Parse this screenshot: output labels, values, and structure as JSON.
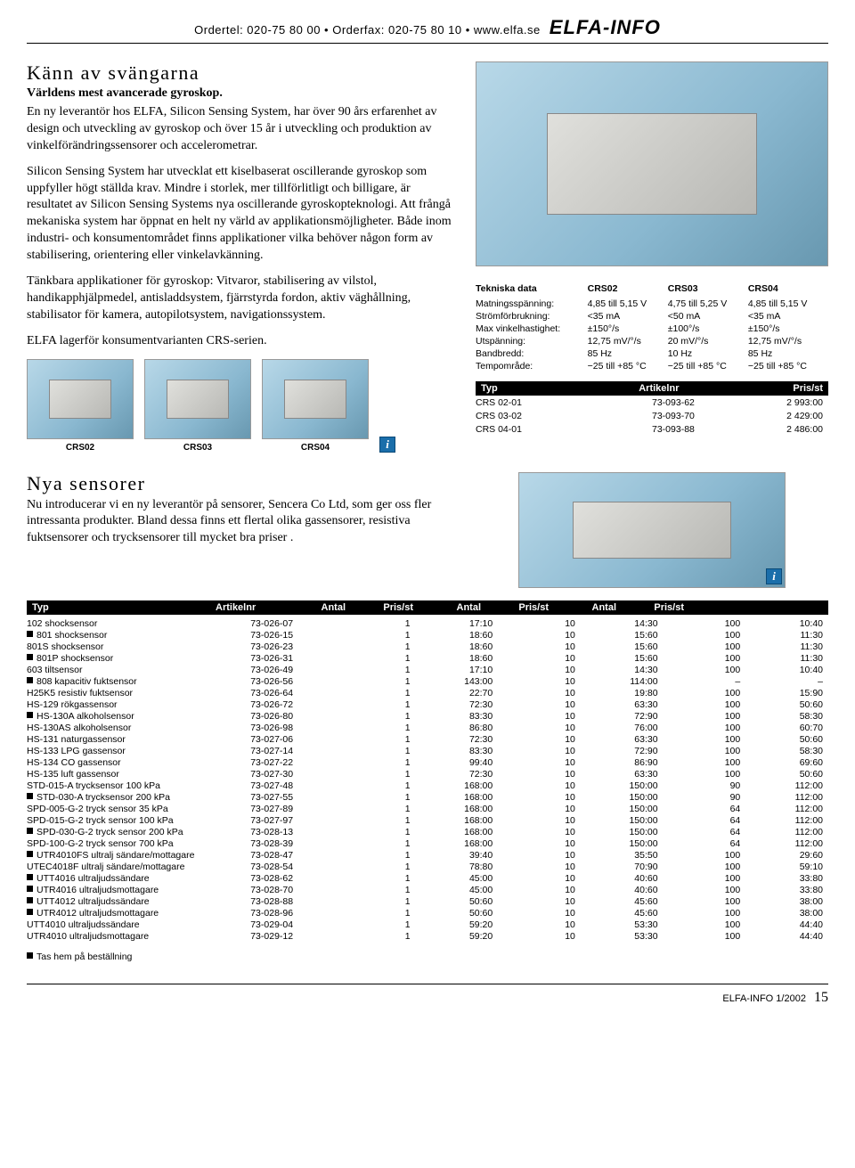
{
  "header": {
    "contact": "Ordertel: 020-75 80 00 • Orderfax: 020-75 80 10 • www.elfa.se",
    "brand": "ELFA-INFO"
  },
  "article1": {
    "title": "Känn av svängarna",
    "subhead": "Världens mest avancerade gyroskop.",
    "p1": "En ny leverantör hos ELFA, Silicon Sensing System, har över 90 års erfarenhet av design och utveckling av gyroskop och över 15 år i utveckling och produktion av vinkelförändringssensorer och accelerometrar.",
    "p2": "Silicon Sensing System har utvecklat ett kiselbaserat oscillerande gyroskop som uppfyller högt ställda krav. Mindre i storlek, mer tillförlitligt och billigare, är resultatet av Silicon Sensing Systems nya oscillerande gyroskopteknologi. Att frångå mekaniska system har öppnat en helt ny värld av applikationsmöjligheter. Både inom industri- och konsumentområdet finns applikationer vilka behöver någon form av stabilisering, orientering eller vinkelavkänning.",
    "p3": "Tänkbara applikationer för gyroskop: Vitvaror, stabilisering av vilstol, handikapphjälpmedel, antisladdsystem, fjärrstyrda fordon, aktiv väghållning, stabilisator för kamera, autopilotsystem, navigationssystem.",
    "p4": "ELFA lagerför konsumentvarianten CRS-serien.",
    "products": [
      {
        "label": "CRS02"
      },
      {
        "label": "CRS03"
      },
      {
        "label": "CRS04"
      }
    ],
    "spec": {
      "head": [
        "Tekniska data",
        "CRS02",
        "CRS03",
        "CRS04"
      ],
      "rows": [
        [
          "Matningsspänning:",
          "4,85 till 5,15 V",
          "4,75 till 5,25 V",
          "4,85 till 5,15 V"
        ],
        [
          "Strömförbrukning:",
          "<35 mA",
          "<50 mA",
          "<35 mA"
        ],
        [
          "Max vinkelhastighet:",
          "±150°/s",
          "±100°/s",
          "±150°/s"
        ],
        [
          "Utspänning:",
          "12,75 mV/°/s",
          "20 mV/°/s",
          "12,75 mV/°/s"
        ],
        [
          "Bandbredd:",
          "85 Hz",
          "10 Hz",
          "85 Hz"
        ],
        [
          "Tempområde:",
          "−25 till +85 °C",
          "−25 till +85 °C",
          "−25 till +85 °C"
        ]
      ]
    },
    "pricing_head": {
      "typ": "Typ",
      "art": "Artikelnr",
      "pris": "Pris/st"
    },
    "pricing_rows": [
      [
        "CRS 02-01",
        "73-093-62",
        "2 993:00"
      ],
      [
        "CRS 03-02",
        "73-093-70",
        "2 429:00"
      ],
      [
        "CRS 04-01",
        "73-093-88",
        "2 486:00"
      ]
    ]
  },
  "article2": {
    "title": "Nya sensorer",
    "p1": "Nu introducerar vi en ny leverantör på sensorer, Sencera Co Ltd, som ger oss fler intressanta produkter. Bland dessa finns ett flertal olika gassensorer, resistiva fuktsensorer och trycksensorer till mycket bra priser .",
    "head": [
      "Typ",
      "Artikelnr",
      "Antal",
      "Pris/st",
      "Antal",
      "Pris/st",
      "Antal",
      "Pris/st"
    ],
    "rows": [
      {
        "sq": false,
        "c": [
          "102 shocksensor",
          "73-026-07",
          "1",
          "17:10",
          "10",
          "14:30",
          "100",
          "10:40"
        ]
      },
      {
        "sq": true,
        "c": [
          "801 shocksensor",
          "73-026-15",
          "1",
          "18:60",
          "10",
          "15:60",
          "100",
          "11:30"
        ]
      },
      {
        "sq": false,
        "c": [
          "801S shocksensor",
          "73-026-23",
          "1",
          "18:60",
          "10",
          "15:60",
          "100",
          "11:30"
        ]
      },
      {
        "sq": true,
        "c": [
          "801P shocksensor",
          "73-026-31",
          "1",
          "18:60",
          "10",
          "15:60",
          "100",
          "11:30"
        ]
      },
      {
        "sq": false,
        "c": [
          "603 tiltsensor",
          "73-026-49",
          "1",
          "17:10",
          "10",
          "14:30",
          "100",
          "10:40"
        ]
      },
      {
        "sq": true,
        "c": [
          "808 kapacitiv fuktsensor",
          "73-026-56",
          "1",
          "143:00",
          "10",
          "114:00",
          "–",
          "–"
        ]
      },
      {
        "sq": false,
        "c": [
          "H25K5 resistiv fuktsensor",
          "73-026-64",
          "1",
          "22:70",
          "10",
          "19:80",
          "100",
          "15:90"
        ]
      },
      {
        "sq": false,
        "c": [
          "HS-129 rökgassensor",
          "73-026-72",
          "1",
          "72:30",
          "10",
          "63:30",
          "100",
          "50:60"
        ]
      },
      {
        "sq": true,
        "c": [
          "HS-130A alkoholsensor",
          "73-026-80",
          "1",
          "83:30",
          "10",
          "72:90",
          "100",
          "58:30"
        ]
      },
      {
        "sq": false,
        "c": [
          "HS-130AS alkoholsensor",
          "73-026-98",
          "1",
          "86:80",
          "10",
          "76:00",
          "100",
          "60:70"
        ]
      },
      {
        "sq": false,
        "c": [
          "HS-131 naturgassensor",
          "73-027-06",
          "1",
          "72:30",
          "10",
          "63:30",
          "100",
          "50:60"
        ]
      },
      {
        "sq": false,
        "c": [
          "HS-133 LPG gassensor",
          "73-027-14",
          "1",
          "83:30",
          "10",
          "72:90",
          "100",
          "58:30"
        ]
      },
      {
        "sq": false,
        "c": [
          "HS-134 CO gassensor",
          "73-027-22",
          "1",
          "99:40",
          "10",
          "86:90",
          "100",
          "69:60"
        ]
      },
      {
        "sq": false,
        "c": [
          "HS-135 luft gassensor",
          "73-027-30",
          "1",
          "72:30",
          "10",
          "63:30",
          "100",
          "50:60"
        ]
      },
      {
        "sq": false,
        "c": [
          "STD-015-A trycksensor 100 kPa",
          "73-027-48",
          "1",
          "168:00",
          "10",
          "150:00",
          "90",
          "112:00"
        ]
      },
      {
        "sq": true,
        "c": [
          "STD-030-A trycksensor 200 kPa",
          "73-027-55",
          "1",
          "168:00",
          "10",
          "150:00",
          "90",
          "112:00"
        ]
      },
      {
        "sq": false,
        "c": [
          "SPD-005-G-2 tryck sensor 35 kPa",
          "73-027-89",
          "1",
          "168:00",
          "10",
          "150:00",
          "64",
          "112:00"
        ]
      },
      {
        "sq": false,
        "c": [
          "SPD-015-G-2 tryck sensor 100 kPa",
          "73-027-97",
          "1",
          "168:00",
          "10",
          "150:00",
          "64",
          "112:00"
        ]
      },
      {
        "sq": true,
        "c": [
          "SPD-030-G-2 tryck sensor 200 kPa",
          "73-028-13",
          "1",
          "168:00",
          "10",
          "150:00",
          "64",
          "112:00"
        ]
      },
      {
        "sq": false,
        "c": [
          "SPD-100-G-2 tryck sensor 700 kPa",
          "73-028-39",
          "1",
          "168:00",
          "10",
          "150:00",
          "64",
          "112:00"
        ]
      },
      {
        "sq": true,
        "c": [
          "UTR4010FS ultralj sändare/mottagare",
          "73-028-47",
          "1",
          "39:40",
          "10",
          "35:50",
          "100",
          "29:60"
        ]
      },
      {
        "sq": false,
        "c": [
          "UTEC4018F ultralj sändare/mottagare",
          "73-028-54",
          "1",
          "78:80",
          "10",
          "70:90",
          "100",
          "59:10"
        ]
      },
      {
        "sq": true,
        "c": [
          "UTT4016 ultraljudssändare",
          "73-028-62",
          "1",
          "45:00",
          "10",
          "40:60",
          "100",
          "33:80"
        ]
      },
      {
        "sq": true,
        "c": [
          "UTR4016 ultraljudsmottagare",
          "73-028-70",
          "1",
          "45:00",
          "10",
          "40:60",
          "100",
          "33:80"
        ]
      },
      {
        "sq": true,
        "c": [
          "UTT4012 ultraljudssändare",
          "73-028-88",
          "1",
          "50:60",
          "10",
          "45:60",
          "100",
          "38:00"
        ]
      },
      {
        "sq": true,
        "c": [
          "UTR4012 ultraljudsmottagare",
          "73-028-96",
          "1",
          "50:60",
          "10",
          "45:60",
          "100",
          "38:00"
        ]
      },
      {
        "sq": false,
        "c": [
          "UTT4010 ultraljudssändare",
          "73-029-04",
          "1",
          "59:20",
          "10",
          "53:30",
          "100",
          "44:40"
        ]
      },
      {
        "sq": false,
        "c": [
          "UTR4010 ultraljudsmottagare",
          "73-029-12",
          "1",
          "59:20",
          "10",
          "53:30",
          "100",
          "44:40"
        ]
      }
    ],
    "footnote": "Tas hem på beställning"
  },
  "footer": {
    "issue": "ELFA-INFO 1/2002",
    "page": "15"
  }
}
